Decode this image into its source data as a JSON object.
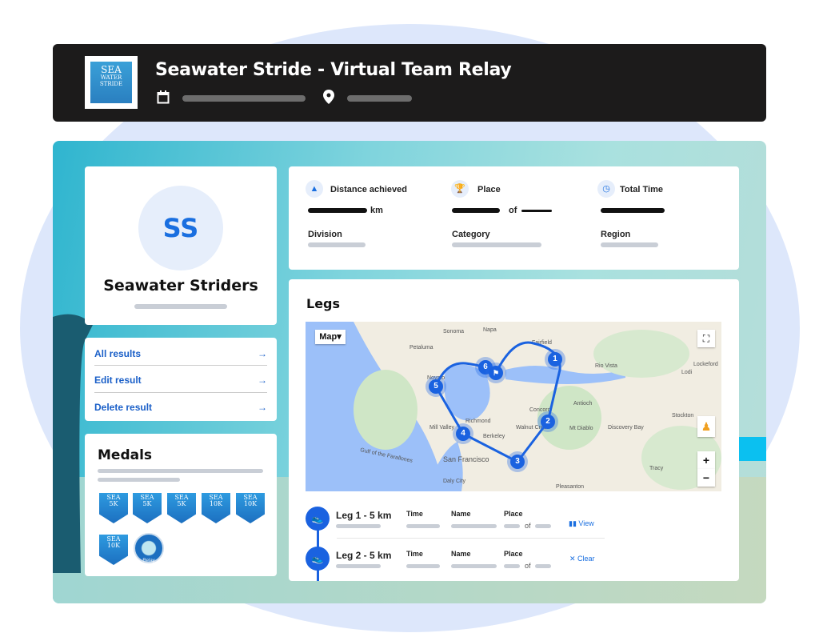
{
  "header": {
    "title": "Seawater Stride - Virtual Team Relay",
    "logo_text": [
      "SEA",
      "WATER",
      "STRIDE"
    ],
    "date_icon": "calendar-icon",
    "location_icon": "map-pin-icon"
  },
  "profile": {
    "initials": "SS",
    "team_name": "Seawater Striders"
  },
  "actions": [
    {
      "label": "All results"
    },
    {
      "label": "Edit result"
    },
    {
      "label": "Delete result"
    }
  ],
  "medals": {
    "title": "Medals",
    "items": [
      "5K",
      "5K",
      "5K",
      "10K",
      "10K",
      "10K",
      "Relay"
    ]
  },
  "stats": {
    "distance": {
      "label": "Distance achieved",
      "unit": "km",
      "icon": "road-icon"
    },
    "place": {
      "label": "Place",
      "of": "of",
      "icon": "trophy-icon"
    },
    "time": {
      "label": "Total Time",
      "icon": "clock-icon"
    },
    "division": "Division",
    "category": "Category",
    "region": "Region"
  },
  "legs": {
    "title": "Legs",
    "map": {
      "type_button": "Map",
      "towns": [
        "Sonoma",
        "Napa",
        "Fairfield",
        "Petaluma",
        "Rio Vista",
        "Lockeford",
        "Lodi",
        "Novato",
        "Antioch",
        "Concord",
        "Richmond",
        "Walnut Creek",
        "Mt Diablo",
        "Discovery Bay",
        "Stockton",
        "Mill Valley",
        "Berkeley",
        "Gulf of the Farallones",
        "San Francisco",
        "Tracy",
        "Daly City",
        "Pleasanton"
      ],
      "markers": [
        "1",
        "2",
        "3",
        "4",
        "5",
        "6"
      ],
      "colors": {
        "route": "#1a62e0",
        "water": "#9cc0f9",
        "land": "#f1ede2"
      }
    },
    "columns": {
      "time": "Time",
      "name": "Name",
      "place": "Place",
      "of": "of"
    },
    "rows": [
      {
        "title": "Leg 1 - 5 km",
        "action": "View",
        "action_icon": "map-icon"
      },
      {
        "title": "Leg 2 - 5 km",
        "action": "Clear",
        "action_icon": "close-icon"
      }
    ]
  },
  "colors": {
    "accent": "#1a6fe0",
    "header_bg": "#1c1b1b"
  }
}
